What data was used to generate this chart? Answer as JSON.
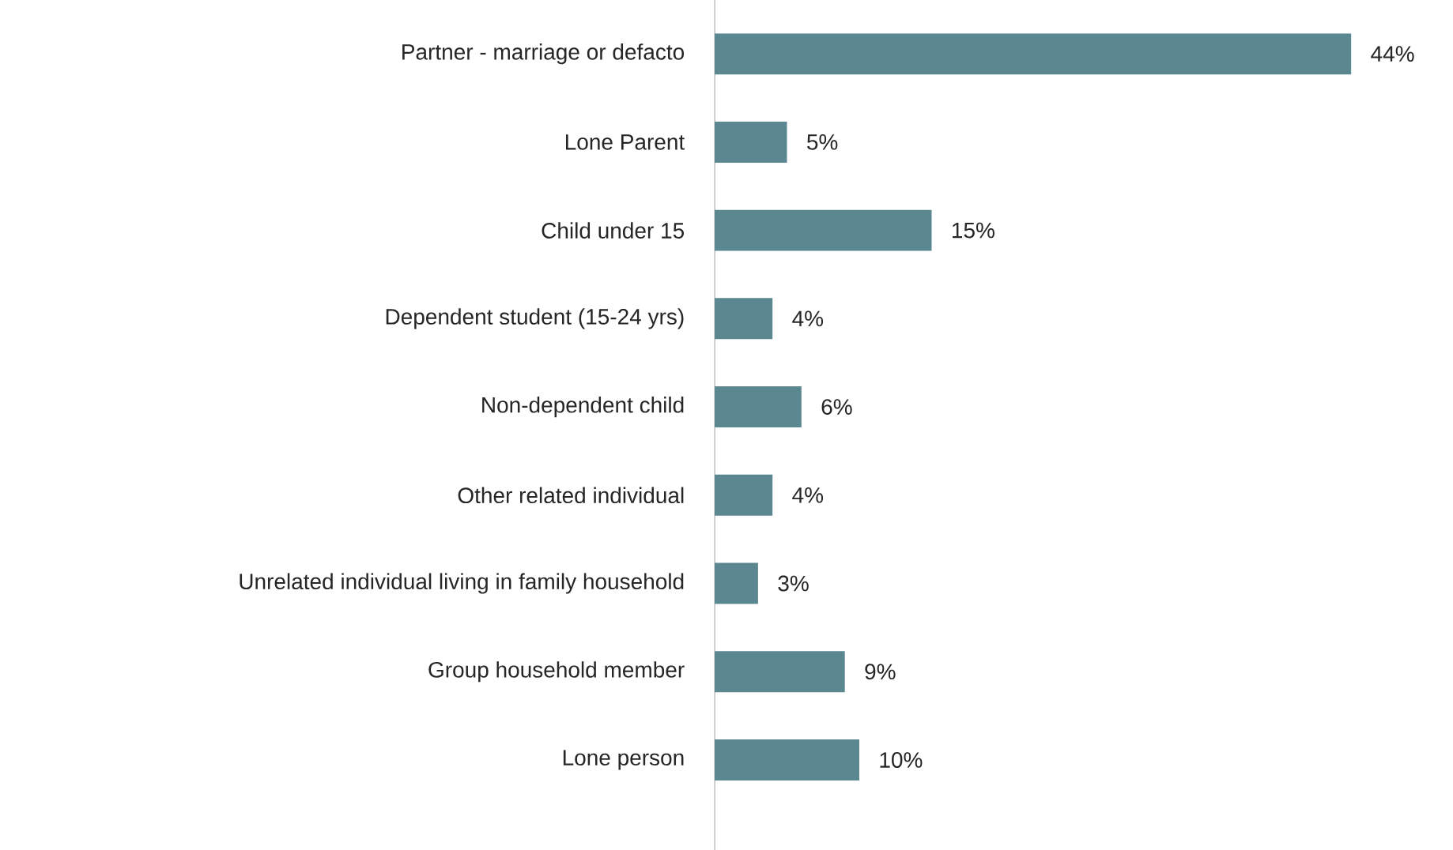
{
  "chart_data": {
    "type": "bar",
    "orientation": "horizontal",
    "categories": [
      "Partner - marriage or defacto",
      "Lone Parent",
      "Child under 15",
      "Dependent student (15-24 yrs)",
      "Non-dependent child",
      "Other related individual",
      "Unrelated individual living in family household",
      "Group household member",
      "Lone person"
    ],
    "values": [
      44,
      5,
      15,
      4,
      6,
      4,
      3,
      9,
      10
    ],
    "value_labels": [
      "44%",
      "5%",
      "15%",
      "4%",
      "6%",
      "4%",
      "3%",
      "9%",
      "10%"
    ],
    "color": "#5b8890"
  }
}
